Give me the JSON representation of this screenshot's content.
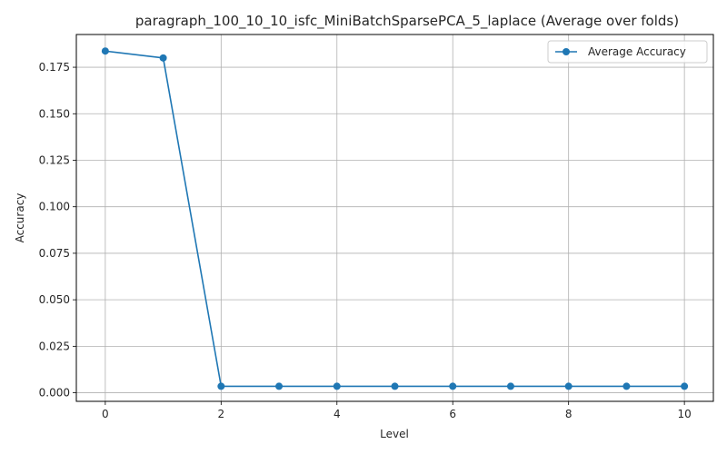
{
  "chart_data": {
    "type": "line",
    "title": "paragraph_100_10_10_isfc_MiniBatchSparsePCA_5_laplace (Average over folds)",
    "xlabel": "Level",
    "ylabel": "Accuracy",
    "xlim": [
      -0.5,
      10.5
    ],
    "ylim": [
      -0.0046,
      0.1926
    ],
    "xticks": [
      0,
      2,
      4,
      6,
      8,
      10
    ],
    "xtick_labels": [
      "0",
      "2",
      "4",
      "6",
      "8",
      "10"
    ],
    "yticks": [
      0.0,
      0.025,
      0.05,
      0.075,
      0.1,
      0.125,
      0.15,
      0.175
    ],
    "ytick_labels": [
      "0.000",
      "0.025",
      "0.050",
      "0.075",
      "0.100",
      "0.125",
      "0.150",
      "0.175"
    ],
    "grid": true,
    "legend_position": "upper right",
    "series": [
      {
        "name": "Average Accuracy",
        "color": "#1f77b4",
        "marker": "circle",
        "x": [
          0,
          1,
          2,
          3,
          4,
          5,
          6,
          7,
          8,
          9,
          10
        ],
        "y": [
          0.1837,
          0.18,
          0.0035,
          0.0035,
          0.0035,
          0.0035,
          0.0035,
          0.0035,
          0.0035,
          0.0035,
          0.0035
        ]
      }
    ]
  }
}
